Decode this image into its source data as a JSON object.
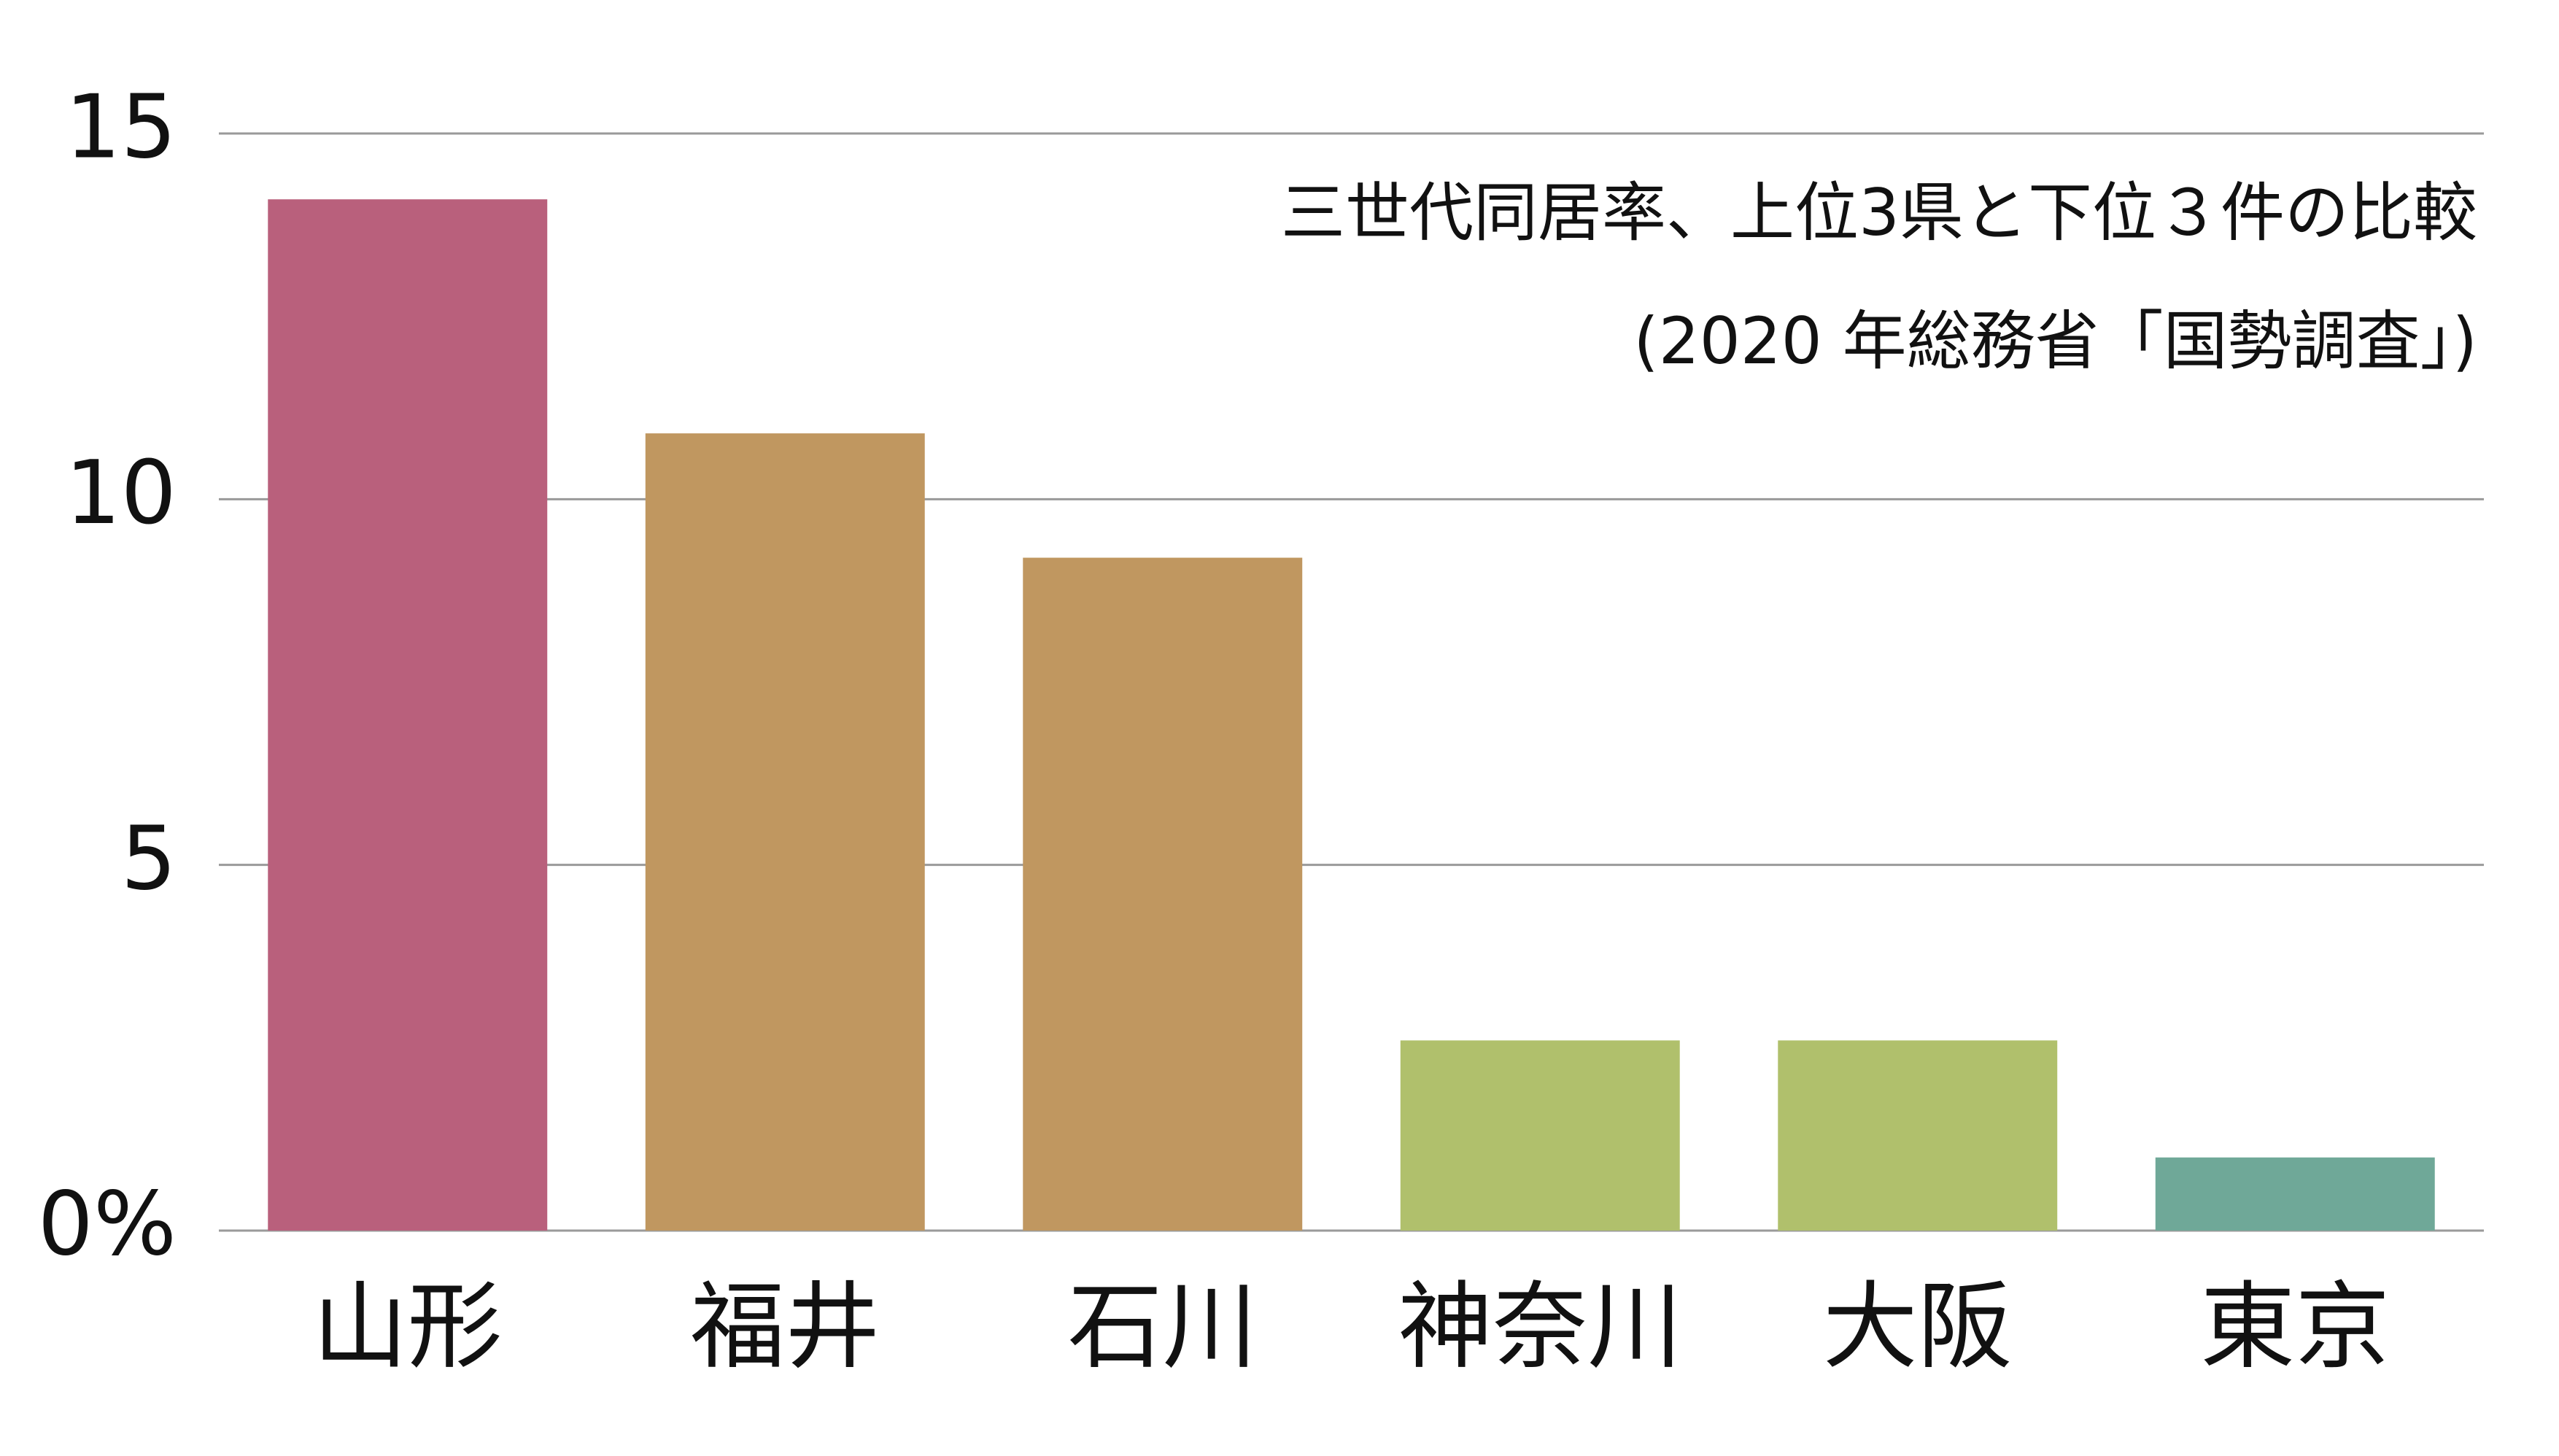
{
  "chart_data": {
    "type": "bar",
    "title": [
      "三世代同居率、上位3県と下位３件の比較",
      "(2020 年総務省「国勢調査」)"
    ],
    "categories": [
      "山形",
      "福井",
      "石川",
      "神奈川",
      "大阪",
      "東京"
    ],
    "values": [
      14.1,
      10.9,
      9.2,
      2.6,
      2.6,
      1.0
    ],
    "colors": [
      "#b9607c",
      "#c09760",
      "#c09760",
      "#b0c06c",
      "#b0c06c",
      "#6fa898"
    ],
    "ylim": [
      0,
      15
    ],
    "yticks": [
      {
        "value": 0,
        "label": "0%"
      },
      5,
      10,
      15
    ],
    "grid": true
  }
}
